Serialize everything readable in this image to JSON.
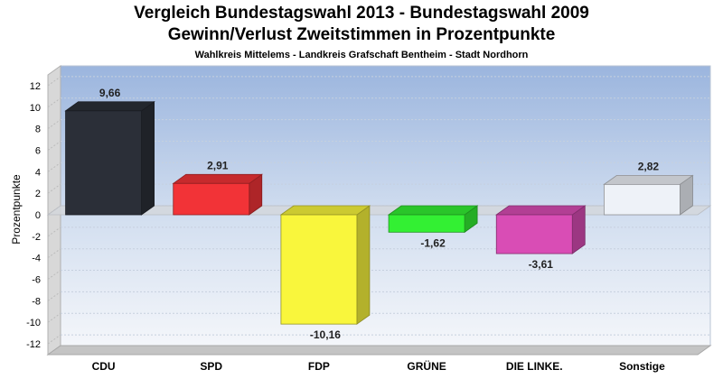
{
  "chart_data": {
    "type": "bar",
    "title": "Vergleich Bundestagswahl 2013 - Bundestagswahl 2009",
    "subtitle": "Gewinn/Verlust Zweitstimmen in Prozentpunkte",
    "subtitle2": "Wahlkreis Mittelems - Landkreis Grafschaft Bentheim - Stadt Nordhorn",
    "xlabel": "",
    "ylabel": "Prozentpunkte",
    "ylim": [
      -13,
      13
    ],
    "yticks": [
      12,
      10,
      8,
      6,
      4,
      2,
      0,
      -2,
      -4,
      -6,
      -8,
      -10,
      -12
    ],
    "grid": true,
    "categories": [
      "CDU",
      "SPD",
      "FDP",
      "GRÜNE",
      "DIE LINKE.",
      "Sonstige"
    ],
    "values": [
      9.66,
      2.91,
      -10.16,
      -1.62,
      -3.61,
      2.82
    ],
    "data_labels": [
      "9,66",
      "2,91",
      "-10,16",
      "-1,62",
      "-3,61",
      "2,82"
    ],
    "colors": [
      "#2b2f38",
      "#f23337",
      "#f9f63c",
      "#33f033",
      "#d94db5",
      "#eef2f8"
    ]
  }
}
